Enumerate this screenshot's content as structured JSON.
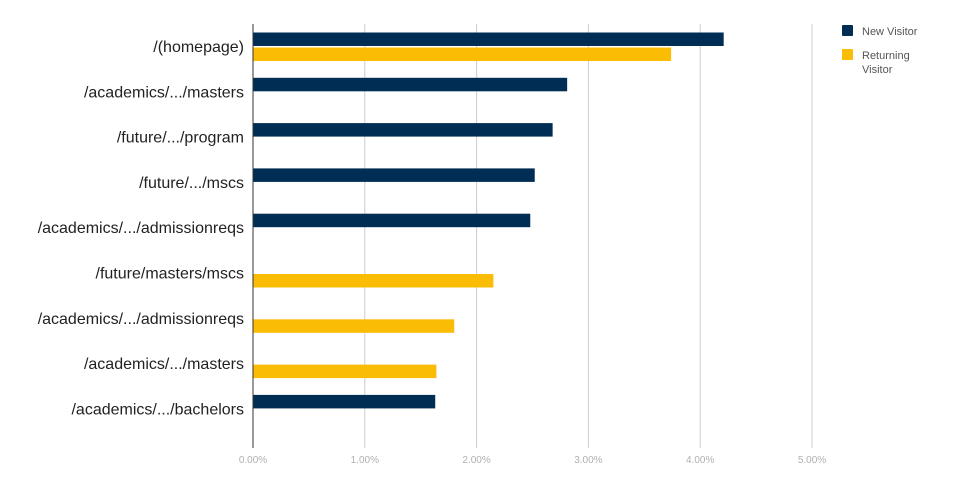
{
  "chart_data": {
    "type": "bar",
    "orientation": "horizontal",
    "categories": [
      "/(homepage)",
      "/academics/.../masters",
      "/future/.../program",
      "/future/.../mscs",
      "/academics/.../admissionreqs",
      "/future/masters/mscs",
      "/academics/.../admissionreqs",
      "/academics/.../masters",
      "/academics/.../bachelors"
    ],
    "series": [
      {
        "name": "New Visitor",
        "color": "#002d54",
        "values": [
          4.21,
          2.81,
          2.68,
          2.52,
          2.48,
          null,
          null,
          null,
          1.63
        ]
      },
      {
        "name": "Returning Visitor",
        "color": "#fbbc05",
        "values": [
          3.74,
          null,
          null,
          null,
          null,
          2.15,
          1.8,
          1.64,
          null
        ]
      }
    ],
    "xlim": [
      0,
      5
    ],
    "xticks": [
      "0.00%",
      "1.00%",
      "2.00%",
      "3.00%",
      "4.00%",
      "5.00%"
    ],
    "grid": true,
    "legend_position": "top-right",
    "legend_labels": [
      {
        "lines": [
          "New Visitor"
        ]
      },
      {
        "lines": [
          "Returning",
          "Visitor"
        ]
      }
    ]
  }
}
